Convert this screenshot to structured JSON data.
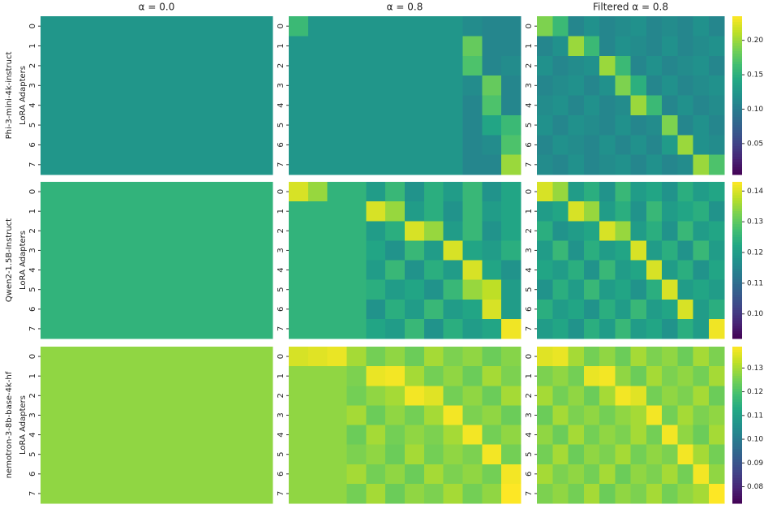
{
  "chart_data": [
    {
      "type": "heatmap",
      "title": "α = 0.0",
      "model": "Phi-3-mini-4k-instruct",
      "ylabel": "LoRA Adapters",
      "categories": [
        "0",
        "1",
        "2",
        "3",
        "4",
        "5",
        "6",
        "7"
      ],
      "colormap": "viridis",
      "clim": [
        0.005,
        0.235
      ],
      "z": [
        [
          0.125,
          0.125,
          0.125,
          0.125,
          0.125,
          0.125,
          0.125,
          0.125,
          0.125,
          0.125,
          0.125,
          0.125
        ],
        [
          0.125,
          0.125,
          0.125,
          0.125,
          0.125,
          0.125,
          0.125,
          0.125,
          0.125,
          0.125,
          0.125,
          0.125
        ],
        [
          0.125,
          0.125,
          0.125,
          0.125,
          0.125,
          0.125,
          0.125,
          0.125,
          0.125,
          0.125,
          0.125,
          0.125
        ],
        [
          0.125,
          0.125,
          0.125,
          0.125,
          0.125,
          0.125,
          0.125,
          0.125,
          0.125,
          0.125,
          0.125,
          0.125
        ],
        [
          0.125,
          0.125,
          0.125,
          0.125,
          0.125,
          0.125,
          0.125,
          0.125,
          0.125,
          0.125,
          0.125,
          0.125
        ],
        [
          0.125,
          0.125,
          0.125,
          0.125,
          0.125,
          0.125,
          0.125,
          0.125,
          0.125,
          0.125,
          0.125,
          0.125
        ],
        [
          0.125,
          0.125,
          0.125,
          0.125,
          0.125,
          0.125,
          0.125,
          0.125,
          0.125,
          0.125,
          0.125,
          0.125
        ],
        [
          0.125,
          0.125,
          0.125,
          0.125,
          0.125,
          0.125,
          0.125,
          0.125,
          0.125,
          0.125,
          0.125,
          0.125
        ]
      ]
    },
    {
      "type": "heatmap",
      "title": "α = 0.8",
      "categories": [
        "0",
        "1",
        "2",
        "3",
        "4",
        "5",
        "6",
        "7"
      ],
      "colormap": "viridis",
      "clim": [
        0.005,
        0.235
      ],
      "z": [
        [
          0.16,
          0.125,
          0.125,
          0.125,
          0.125,
          0.125,
          0.125,
          0.125,
          0.125,
          0.115,
          0.11,
          0.11
        ],
        [
          0.125,
          0.125,
          0.125,
          0.125,
          0.125,
          0.125,
          0.125,
          0.125,
          0.125,
          0.18,
          0.11,
          0.11
        ],
        [
          0.125,
          0.125,
          0.125,
          0.125,
          0.125,
          0.125,
          0.125,
          0.125,
          0.125,
          0.17,
          0.11,
          0.115
        ],
        [
          0.125,
          0.125,
          0.125,
          0.125,
          0.125,
          0.125,
          0.125,
          0.125,
          0.125,
          0.115,
          0.18,
          0.11
        ],
        [
          0.125,
          0.125,
          0.125,
          0.125,
          0.125,
          0.125,
          0.125,
          0.125,
          0.125,
          0.11,
          0.17,
          0.11
        ],
        [
          0.125,
          0.125,
          0.125,
          0.125,
          0.125,
          0.125,
          0.125,
          0.125,
          0.125,
          0.11,
          0.14,
          0.16
        ],
        [
          0.125,
          0.125,
          0.125,
          0.125,
          0.125,
          0.125,
          0.125,
          0.125,
          0.125,
          0.11,
          0.115,
          0.17
        ],
        [
          0.125,
          0.125,
          0.125,
          0.125,
          0.125,
          0.125,
          0.125,
          0.125,
          0.125,
          0.11,
          0.11,
          0.2
        ]
      ]
    },
    {
      "type": "heatmap",
      "title": "Filtered α = 0.8",
      "categories": [
        "0",
        "1",
        "2",
        "3",
        "4",
        "5",
        "6",
        "7"
      ],
      "colormap": "viridis",
      "clim": [
        0.005,
        0.235
      ],
      "cticks": [
        0.05,
        {
          "value": 0.1,
          "label": "0.10"
        },
        0.15,
        {
          "value": 0.2,
          "label": "0.20"
        }
      ],
      "z": [
        [
          0.19,
          0.16,
          0.11,
          0.12,
          0.11,
          0.115,
          0.12,
          0.11,
          0.115,
          0.11,
          0.12,
          0.11
        ],
        [
          0.11,
          0.12,
          0.2,
          0.16,
          0.11,
          0.12,
          0.115,
          0.11,
          0.12,
          0.11,
          0.115,
          0.12
        ],
        [
          0.12,
          0.11,
          0.115,
          0.12,
          0.2,
          0.16,
          0.11,
          0.12,
          0.11,
          0.115,
          0.12,
          0.11
        ],
        [
          0.11,
          0.115,
          0.12,
          0.11,
          0.12,
          0.19,
          0.15,
          0.11,
          0.12,
          0.11,
          0.115,
          0.12
        ],
        [
          0.115,
          0.12,
          0.11,
          0.12,
          0.11,
          0.115,
          0.2,
          0.16,
          0.11,
          0.12,
          0.11,
          0.115
        ],
        [
          0.12,
          0.11,
          0.12,
          0.115,
          0.11,
          0.12,
          0.11,
          0.115,
          0.19,
          0.11,
          0.12,
          0.11
        ],
        [
          0.11,
          0.12,
          0.115,
          0.11,
          0.12,
          0.11,
          0.12,
          0.11,
          0.13,
          0.2,
          0.12,
          0.115
        ],
        [
          0.115,
          0.11,
          0.12,
          0.11,
          0.115,
          0.12,
          0.11,
          0.12,
          0.11,
          0.115,
          0.2,
          0.17
        ]
      ]
    },
    {
      "type": "heatmap",
      "model": "Qwen2-1.5B-Instruct",
      "ylabel": "LoRA Adapters",
      "categories": [
        "0",
        "1",
        "2",
        "3",
        "4",
        "5",
        "6",
        "7"
      ],
      "colormap": "viridis",
      "clim": [
        0.092,
        0.143
      ],
      "z": [
        [
          0.125,
          0.125,
          0.125,
          0.125,
          0.125,
          0.125,
          0.125,
          0.125,
          0.125,
          0.125,
          0.125,
          0.125
        ],
        [
          0.125,
          0.125,
          0.125,
          0.125,
          0.125,
          0.125,
          0.125,
          0.125,
          0.125,
          0.125,
          0.125,
          0.125
        ],
        [
          0.125,
          0.125,
          0.125,
          0.125,
          0.125,
          0.125,
          0.125,
          0.125,
          0.125,
          0.125,
          0.125,
          0.125
        ],
        [
          0.125,
          0.125,
          0.125,
          0.125,
          0.125,
          0.125,
          0.125,
          0.125,
          0.125,
          0.125,
          0.125,
          0.125
        ],
        [
          0.125,
          0.125,
          0.125,
          0.125,
          0.125,
          0.125,
          0.125,
          0.125,
          0.125,
          0.125,
          0.125,
          0.125
        ],
        [
          0.125,
          0.125,
          0.125,
          0.125,
          0.125,
          0.125,
          0.125,
          0.125,
          0.125,
          0.125,
          0.125,
          0.125
        ],
        [
          0.125,
          0.125,
          0.125,
          0.125,
          0.125,
          0.125,
          0.125,
          0.125,
          0.125,
          0.125,
          0.125,
          0.125
        ],
        [
          0.125,
          0.125,
          0.125,
          0.125,
          0.125,
          0.125,
          0.125,
          0.125,
          0.125,
          0.125,
          0.125,
          0.125
        ]
      ]
    },
    {
      "type": "heatmap",
      "categories": [
        "0",
        "1",
        "2",
        "3",
        "4",
        "5",
        "6",
        "7"
      ],
      "colormap": "viridis",
      "clim": [
        0.092,
        0.143
      ],
      "z": [
        [
          0.14,
          0.135,
          0.125,
          0.125,
          0.12,
          0.126,
          0.118,
          0.124,
          0.12,
          0.126,
          0.118,
          0.122
        ],
        [
          0.125,
          0.125,
          0.125,
          0.125,
          0.14,
          0.135,
          0.12,
          0.124,
          0.118,
          0.126,
          0.12,
          0.122
        ],
        [
          0.125,
          0.125,
          0.125,
          0.125,
          0.12,
          0.124,
          0.14,
          0.135,
          0.12,
          0.126,
          0.118,
          0.122
        ],
        [
          0.125,
          0.125,
          0.125,
          0.125,
          0.122,
          0.118,
          0.126,
          0.12,
          0.14,
          0.122,
          0.12,
          0.124
        ],
        [
          0.125,
          0.125,
          0.125,
          0.125,
          0.12,
          0.126,
          0.118,
          0.124,
          0.12,
          0.14,
          0.122,
          0.118
        ],
        [
          0.125,
          0.125,
          0.125,
          0.125,
          0.124,
          0.12,
          0.122,
          0.118,
          0.126,
          0.135,
          0.138,
          0.12
        ],
        [
          0.125,
          0.125,
          0.125,
          0.125,
          0.118,
          0.124,
          0.12,
          0.126,
          0.12,
          0.122,
          0.14,
          0.12
        ],
        [
          0.125,
          0.125,
          0.125,
          0.125,
          0.122,
          0.12,
          0.126,
          0.118,
          0.124,
          0.12,
          0.122,
          0.142
        ]
      ]
    },
    {
      "type": "heatmap",
      "categories": [
        "0",
        "1",
        "2",
        "3",
        "4",
        "5",
        "6",
        "7"
      ],
      "colormap": "viridis",
      "clim": [
        0.092,
        0.143
      ],
      "cticks": [
        {
          "value": 0.1,
          "label": "0.10"
        },
        0.11,
        0.12,
        0.13,
        0.14
      ],
      "z": [
        [
          0.14,
          0.135,
          0.12,
          0.124,
          0.118,
          0.126,
          0.12,
          0.122,
          0.118,
          0.124,
          0.12,
          0.122
        ],
        [
          0.12,
          0.122,
          0.14,
          0.135,
          0.12,
          0.124,
          0.118,
          0.126,
          0.12,
          0.122,
          0.124,
          0.118
        ],
        [
          0.124,
          0.118,
          0.12,
          0.122,
          0.14,
          0.135,
          0.12,
          0.124,
          0.118,
          0.126,
          0.12,
          0.122
        ],
        [
          0.12,
          0.126,
          0.118,
          0.124,
          0.12,
          0.122,
          0.14,
          0.12,
          0.124,
          0.118,
          0.126,
          0.12
        ],
        [
          0.122,
          0.12,
          0.124,
          0.118,
          0.126,
          0.12,
          0.122,
          0.14,
          0.12,
          0.124,
          0.118,
          0.122
        ],
        [
          0.118,
          0.124,
          0.12,
          0.126,
          0.12,
          0.122,
          0.118,
          0.124,
          0.14,
          0.12,
          0.122,
          0.12
        ],
        [
          0.124,
          0.12,
          0.122,
          0.118,
          0.124,
          0.12,
          0.126,
          0.12,
          0.122,
          0.14,
          0.12,
          0.124
        ],
        [
          0.12,
          0.122,
          0.118,
          0.124,
          0.12,
          0.126,
          0.12,
          0.122,
          0.118,
          0.124,
          0.12,
          0.142
        ]
      ]
    },
    {
      "type": "heatmap",
      "model": "nemotron-3-8b-base-4k-hf",
      "ylabel": "LoRA Adapters",
      "categories": [
        "0",
        "1",
        "2",
        "3",
        "4",
        "5",
        "6",
        "7"
      ],
      "colormap": "viridis",
      "clim": [
        0.073,
        0.139
      ],
      "z": [
        [
          0.128,
          0.128,
          0.128,
          0.128,
          0.128,
          0.128,
          0.128,
          0.128,
          0.128,
          0.128,
          0.128,
          0.128
        ],
        [
          0.128,
          0.128,
          0.128,
          0.128,
          0.128,
          0.128,
          0.128,
          0.128,
          0.128,
          0.128,
          0.128,
          0.128
        ],
        [
          0.128,
          0.128,
          0.128,
          0.128,
          0.128,
          0.128,
          0.128,
          0.128,
          0.128,
          0.128,
          0.128,
          0.128
        ],
        [
          0.128,
          0.128,
          0.128,
          0.128,
          0.128,
          0.128,
          0.128,
          0.128,
          0.128,
          0.128,
          0.128,
          0.128
        ],
        [
          0.128,
          0.128,
          0.128,
          0.128,
          0.128,
          0.128,
          0.128,
          0.128,
          0.128,
          0.128,
          0.128,
          0.128
        ],
        [
          0.128,
          0.128,
          0.128,
          0.128,
          0.128,
          0.128,
          0.128,
          0.128,
          0.128,
          0.128,
          0.128,
          0.128
        ],
        [
          0.128,
          0.128,
          0.128,
          0.128,
          0.128,
          0.128,
          0.128,
          0.128,
          0.128,
          0.128,
          0.128,
          0.128
        ],
        [
          0.128,
          0.128,
          0.128,
          0.128,
          0.128,
          0.128,
          0.128,
          0.128,
          0.128,
          0.128,
          0.128,
          0.128
        ]
      ]
    },
    {
      "type": "heatmap",
      "categories": [
        "0",
        "1",
        "2",
        "3",
        "4",
        "5",
        "6",
        "7"
      ],
      "colormap": "viridis",
      "clim": [
        0.073,
        0.139
      ],
      "z": [
        [
          0.135,
          0.136,
          0.137,
          0.13,
          0.125,
          0.128,
          0.124,
          0.13,
          0.126,
          0.128,
          0.124,
          0.127
        ],
        [
          0.128,
          0.128,
          0.128,
          0.126,
          0.137,
          0.138,
          0.13,
          0.125,
          0.128,
          0.124,
          0.13,
          0.126
        ],
        [
          0.128,
          0.128,
          0.128,
          0.125,
          0.128,
          0.13,
          0.138,
          0.136,
          0.125,
          0.128,
          0.124,
          0.13
        ],
        [
          0.128,
          0.128,
          0.128,
          0.13,
          0.124,
          0.128,
          0.125,
          0.13,
          0.138,
          0.126,
          0.128,
          0.124
        ],
        [
          0.128,
          0.128,
          0.128,
          0.124,
          0.13,
          0.125,
          0.128,
          0.126,
          0.13,
          0.138,
          0.125,
          0.128
        ],
        [
          0.128,
          0.128,
          0.128,
          0.126,
          0.128,
          0.124,
          0.13,
          0.125,
          0.128,
          0.126,
          0.138,
          0.125
        ],
        [
          0.128,
          0.128,
          0.128,
          0.13,
          0.125,
          0.128,
          0.124,
          0.13,
          0.126,
          0.128,
          0.125,
          0.138
        ],
        [
          0.128,
          0.128,
          0.128,
          0.125,
          0.13,
          0.124,
          0.128,
          0.126,
          0.13,
          0.125,
          0.128,
          0.139
        ]
      ]
    },
    {
      "type": "heatmap",
      "categories": [
        "0",
        "1",
        "2",
        "3",
        "4",
        "5",
        "6",
        "7"
      ],
      "colormap": "viridis",
      "clim": [
        0.073,
        0.139
      ],
      "cticks": [
        0.08,
        0.09,
        {
          "value": 0.1,
          "label": "0.10"
        },
        0.11,
        0.12,
        0.13
      ],
      "z": [
        [
          0.136,
          0.137,
          0.13,
          0.125,
          0.128,
          0.124,
          0.13,
          0.126,
          0.128,
          0.124,
          0.13,
          0.126
        ],
        [
          0.126,
          0.128,
          0.125,
          0.137,
          0.138,
          0.128,
          0.124,
          0.13,
          0.126,
          0.128,
          0.125,
          0.13
        ],
        [
          0.13,
          0.125,
          0.128,
          0.124,
          0.13,
          0.138,
          0.136,
          0.125,
          0.128,
          0.126,
          0.13,
          0.124
        ],
        [
          0.124,
          0.13,
          0.126,
          0.128,
          0.125,
          0.128,
          0.13,
          0.138,
          0.125,
          0.13,
          0.126,
          0.128
        ],
        [
          0.128,
          0.124,
          0.13,
          0.125,
          0.128,
          0.126,
          0.13,
          0.125,
          0.138,
          0.128,
          0.124,
          0.13
        ],
        [
          0.125,
          0.13,
          0.124,
          0.128,
          0.126,
          0.13,
          0.125,
          0.128,
          0.126,
          0.138,
          0.13,
          0.125
        ],
        [
          0.13,
          0.126,
          0.128,
          0.125,
          0.13,
          0.124,
          0.128,
          0.126,
          0.13,
          0.125,
          0.138,
          0.128
        ],
        [
          0.126,
          0.128,
          0.125,
          0.13,
          0.124,
          0.128,
          0.126,
          0.13,
          0.125,
          0.128,
          0.13,
          0.139
        ]
      ]
    }
  ]
}
